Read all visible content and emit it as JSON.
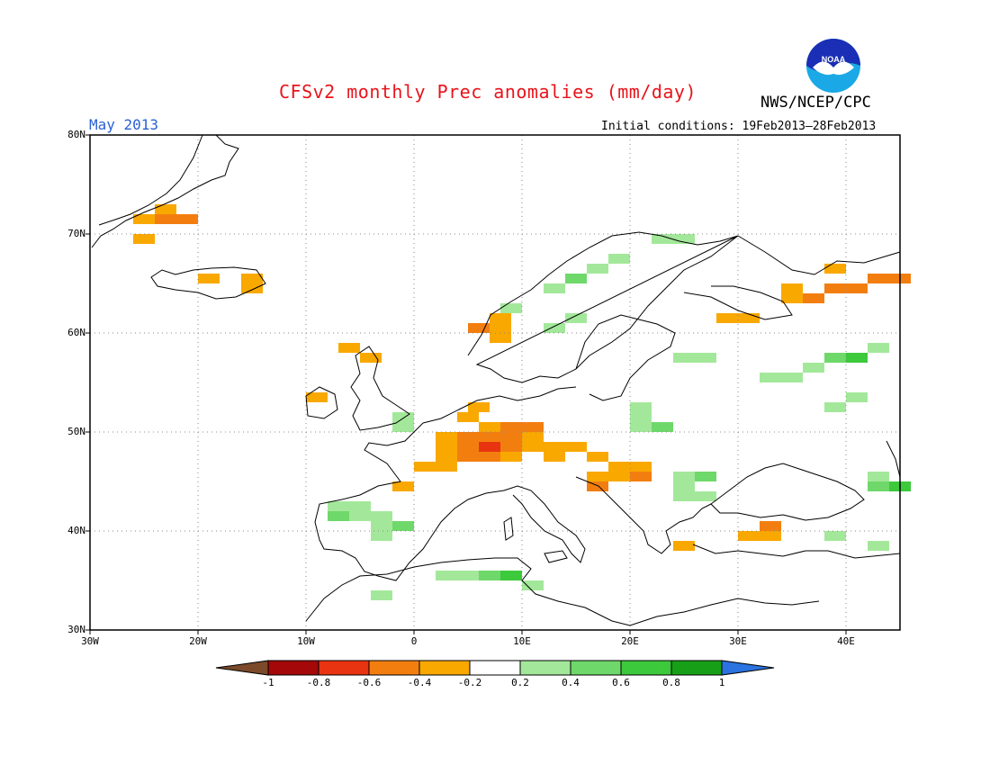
{
  "header": {
    "title": "CFSv2 monthly Prec anomalies (mm/day)",
    "org": "NWS/NCEP/CPC",
    "period": "May 2013",
    "initial_conditions": "Initial conditions: 19Feb2013–28Feb2013",
    "logo_text": "NOAA"
  },
  "axes": {
    "lat_labels": [
      "80N",
      "70N",
      "60N",
      "50N",
      "40N",
      "30N"
    ],
    "lon_labels": [
      "30W",
      "20W",
      "10W",
      "0",
      "10E",
      "20E",
      "30E",
      "40E"
    ]
  },
  "colorbar": {
    "labels": [
      "-1",
      "-0.8",
      "-0.6",
      "-0.4",
      "-0.2",
      "0.2",
      "0.4",
      "0.6",
      "0.8",
      "1"
    ],
    "colors": [
      "#a40808",
      "#e83410",
      "#f37e10",
      "#f9a800",
      "#ffffff",
      "#a3e89a",
      "#6fd86a",
      "#3cc93c",
      "#17a017"
    ],
    "under_color": "#7a4a2a",
    "over_color": "#2a73e0"
  },
  "chart_data": {
    "type": "heatmap",
    "units": "mm/day",
    "lon_range": [
      -30,
      45
    ],
    "lat_range": [
      30,
      80
    ],
    "grid": "dotted",
    "cells_note": "value per 2°x1° cell (lon,lat of lower-left corner)",
    "anomaly_cells": [
      {
        "lon": -26,
        "lat": 71,
        "value": -0.3
      },
      {
        "lon": -24,
        "lat": 71,
        "value": -0.5
      },
      {
        "lon": -22,
        "lat": 71,
        "value": -0.5
      },
      {
        "lon": -24,
        "lat": 72,
        "value": -0.3
      },
      {
        "lon": -26,
        "lat": 69,
        "value": -0.3
      },
      {
        "lon": -20,
        "lat": 65,
        "value": -0.3
      },
      {
        "lon": -16,
        "lat": 65,
        "value": -0.3
      },
      {
        "lon": -16,
        "lat": 64,
        "value": -0.3
      },
      {
        "lon": 5,
        "lat": 60,
        "value": -0.5
      },
      {
        "lon": 7,
        "lat": 61,
        "value": -0.3
      },
      {
        "lon": 7,
        "lat": 60,
        "value": -0.3
      },
      {
        "lon": 7,
        "lat": 59,
        "value": -0.3
      },
      {
        "lon": -7,
        "lat": 58,
        "value": -0.3
      },
      {
        "lon": -5,
        "lat": 57,
        "value": -0.3
      },
      {
        "lon": -10,
        "lat": 53,
        "value": -0.3
      },
      {
        "lon": 5,
        "lat": 52,
        "value": -0.3
      },
      {
        "lon": 4,
        "lat": 51,
        "value": -0.3
      },
      {
        "lon": 6,
        "lat": 50,
        "value": -0.3
      },
      {
        "lon": 8,
        "lat": 50,
        "value": -0.5
      },
      {
        "lon": 10,
        "lat": 50,
        "value": -0.5
      },
      {
        "lon": 2,
        "lat": 49,
        "value": -0.3
      },
      {
        "lon": 4,
        "lat": 49,
        "value": -0.5
      },
      {
        "lon": 6,
        "lat": 49,
        "value": -0.5
      },
      {
        "lon": 8,
        "lat": 49,
        "value": -0.5
      },
      {
        "lon": 10,
        "lat": 49,
        "value": -0.3
      },
      {
        "lon": 2,
        "lat": 48,
        "value": -0.3
      },
      {
        "lon": 4,
        "lat": 48,
        "value": -0.5
      },
      {
        "lon": 6,
        "lat": 48,
        "value": -0.7
      },
      {
        "lon": 8,
        "lat": 48,
        "value": -0.5
      },
      {
        "lon": 10,
        "lat": 48,
        "value": -0.3
      },
      {
        "lon": 12,
        "lat": 48,
        "value": -0.3
      },
      {
        "lon": 14,
        "lat": 48,
        "value": -0.3
      },
      {
        "lon": 2,
        "lat": 47,
        "value": -0.3
      },
      {
        "lon": 4,
        "lat": 47,
        "value": -0.5
      },
      {
        "lon": 6,
        "lat": 47,
        "value": -0.5
      },
      {
        "lon": 8,
        "lat": 47,
        "value": -0.3
      },
      {
        "lon": 12,
        "lat": 47,
        "value": -0.3
      },
      {
        "lon": 16,
        "lat": 47,
        "value": -0.3
      },
      {
        "lon": 0,
        "lat": 46,
        "value": -0.3
      },
      {
        "lon": 2,
        "lat": 46,
        "value": -0.3
      },
      {
        "lon": 18,
        "lat": 46,
        "value": -0.3
      },
      {
        "lon": 20,
        "lat": 46,
        "value": -0.3
      },
      {
        "lon": 16,
        "lat": 45,
        "value": -0.3
      },
      {
        "lon": 18,
        "lat": 45,
        "value": -0.3
      },
      {
        "lon": 20,
        "lat": 45,
        "value": -0.5
      },
      {
        "lon": -2,
        "lat": 44,
        "value": -0.3
      },
      {
        "lon": 16,
        "lat": 44,
        "value": -0.5
      },
      {
        "lon": 32,
        "lat": 40,
        "value": -0.5
      },
      {
        "lon": 30,
        "lat": 39,
        "value": -0.3
      },
      {
        "lon": 32,
        "lat": 39,
        "value": -0.3
      },
      {
        "lon": 24,
        "lat": 38,
        "value": -0.3
      },
      {
        "lon": 36,
        "lat": 63,
        "value": -0.5
      },
      {
        "lon": 38,
        "lat": 64,
        "value": -0.5
      },
      {
        "lon": 40,
        "lat": 64,
        "value": -0.5
      },
      {
        "lon": 42,
        "lat": 65,
        "value": -0.5
      },
      {
        "lon": 44,
        "lat": 65,
        "value": -0.5
      },
      {
        "lon": 34,
        "lat": 63,
        "value": -0.3
      },
      {
        "lon": 34,
        "lat": 64,
        "value": -0.3
      },
      {
        "lon": 38,
        "lat": 66,
        "value": -0.3
      },
      {
        "lon": 28,
        "lat": 61,
        "value": -0.3
      },
      {
        "lon": 30,
        "lat": 61,
        "value": -0.3
      },
      {
        "lon": 8,
        "lat": 62,
        "value": 0.3
      },
      {
        "lon": 12,
        "lat": 64,
        "value": 0.3
      },
      {
        "lon": 14,
        "lat": 65,
        "value": 0.4
      },
      {
        "lon": 16,
        "lat": 66,
        "value": 0.3
      },
      {
        "lon": 18,
        "lat": 67,
        "value": 0.3
      },
      {
        "lon": 22,
        "lat": 69,
        "value": 0.3
      },
      {
        "lon": 24,
        "lat": 69,
        "value": 0.3
      },
      {
        "lon": 12,
        "lat": 60,
        "value": 0.3
      },
      {
        "lon": 14,
        "lat": 61,
        "value": 0.3
      },
      {
        "lon": 24,
        "lat": 57,
        "value": 0.3
      },
      {
        "lon": 26,
        "lat": 57,
        "value": 0.3
      },
      {
        "lon": -2,
        "lat": 51,
        "value": 0.3
      },
      {
        "lon": -2,
        "lat": 50,
        "value": 0.3
      },
      {
        "lon": 20,
        "lat": 52,
        "value": 0.3
      },
      {
        "lon": 20,
        "lat": 51,
        "value": 0.3
      },
      {
        "lon": 22,
        "lat": 50,
        "value": 0.4
      },
      {
        "lon": 20,
        "lat": 50,
        "value": 0.3
      },
      {
        "lon": 24,
        "lat": 45,
        "value": 0.3
      },
      {
        "lon": 26,
        "lat": 45,
        "value": 0.5
      },
      {
        "lon": 24,
        "lat": 44,
        "value": 0.3
      },
      {
        "lon": 26,
        "lat": 43,
        "value": 0.3
      },
      {
        "lon": 24,
        "lat": 43,
        "value": 0.3
      },
      {
        "lon": -8,
        "lat": 42,
        "value": 0.3
      },
      {
        "lon": -6,
        "lat": 42,
        "value": 0.3
      },
      {
        "lon": -8,
        "lat": 41,
        "value": 0.5
      },
      {
        "lon": -6,
        "lat": 41,
        "value": 0.3
      },
      {
        "lon": -4,
        "lat": 41,
        "value": 0.3
      },
      {
        "lon": -2,
        "lat": 40,
        "value": 0.5
      },
      {
        "lon": -4,
        "lat": 40,
        "value": 0.3
      },
      {
        "lon": -4,
        "lat": 39,
        "value": 0.3
      },
      {
        "lon": 2,
        "lat": 35,
        "value": 0.3
      },
      {
        "lon": 4,
        "lat": 35,
        "value": 0.3
      },
      {
        "lon": 6,
        "lat": 35,
        "value": 0.5
      },
      {
        "lon": 8,
        "lat": 35,
        "value": 0.7
      },
      {
        "lon": 10,
        "lat": 34,
        "value": 0.3
      },
      {
        "lon": -4,
        "lat": 33,
        "value": 0.3
      },
      {
        "lon": 32,
        "lat": 55,
        "value": 0.3
      },
      {
        "lon": 34,
        "lat": 55,
        "value": 0.3
      },
      {
        "lon": 36,
        "lat": 56,
        "value": 0.3
      },
      {
        "lon": 38,
        "lat": 57,
        "value": 0.5
      },
      {
        "lon": 40,
        "lat": 57,
        "value": 0.7
      },
      {
        "lon": 42,
        "lat": 58,
        "value": 0.3
      },
      {
        "lon": 38,
        "lat": 52,
        "value": 0.3
      },
      {
        "lon": 40,
        "lat": 53,
        "value": 0.3
      },
      {
        "lon": 42,
        "lat": 45,
        "value": 0.3
      },
      {
        "lon": 42,
        "lat": 44,
        "value": 0.5
      },
      {
        "lon": 44,
        "lat": 44,
        "value": 0.7
      },
      {
        "lon": 38,
        "lat": 39,
        "value": 0.3
      },
      {
        "lon": 42,
        "lat": 38,
        "value": 0.3
      }
    ]
  }
}
